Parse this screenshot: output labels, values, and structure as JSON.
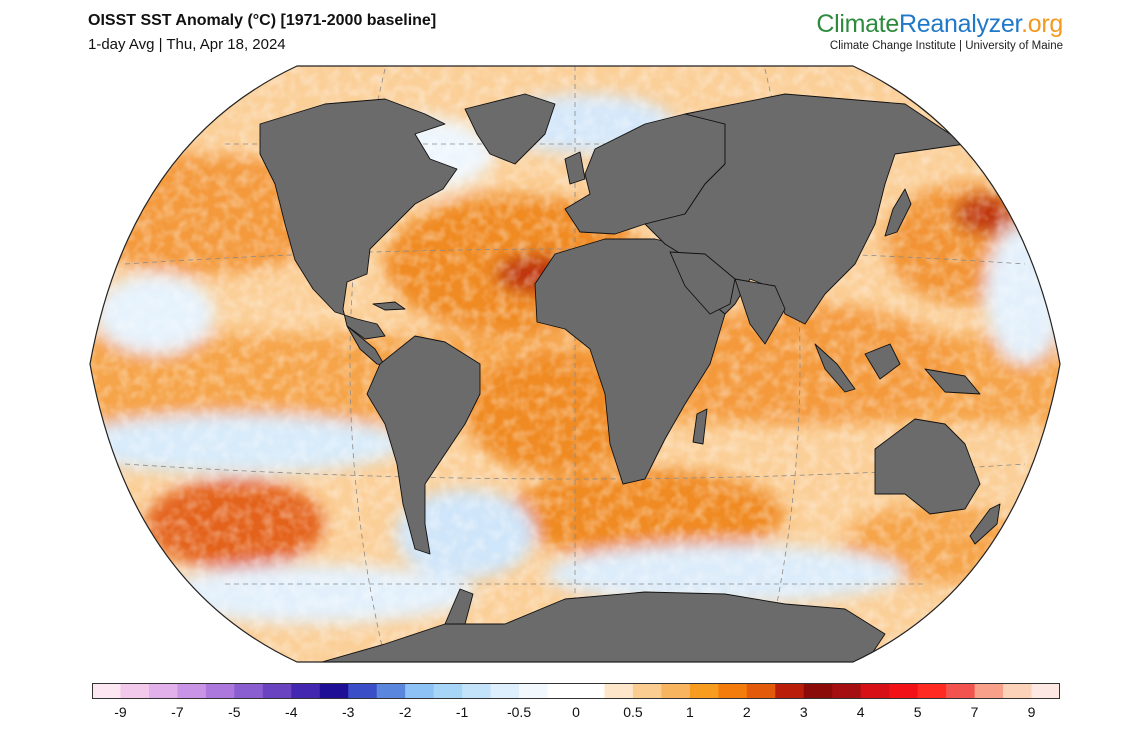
{
  "header": {
    "title": "OISST SST Anomaly (°C) [1971-2000 baseline]",
    "subtitle": "1-day Avg | Thu, Apr 18, 2024"
  },
  "brand": {
    "part1": "Climate",
    "part2": "Reanalyzer",
    "part3": ".org",
    "tagline": "Climate Change Institute | University of Maine",
    "colors": {
      "part1": "#2e8b3e",
      "part2": "#1f78c8",
      "part3": "#f39a1e"
    }
  },
  "map": {
    "projection": "Robinson",
    "land_color": "#6b6b6b",
    "coast_color": "#111111",
    "graticule": "dashed"
  },
  "colorbar": {
    "colors": [
      "#fde7f2",
      "#f2c9ea",
      "#e2b1ec",
      "#c994e6",
      "#ad78de",
      "#8a5dd1",
      "#6a43c0",
      "#4427b0",
      "#1f0f96",
      "#3a4ec7",
      "#5a86de",
      "#8dc2f7",
      "#a7d5f8",
      "#c2e3fa",
      "#ddeffc",
      "#f2f9fe",
      "#ffffff",
      "#ffffff",
      "#fde6c9",
      "#fbcd90",
      "#f8b45e",
      "#f79c1f",
      "#f37c0d",
      "#e45a0b",
      "#ba1e0a",
      "#8a0b07",
      "#a60f12",
      "#d70f16",
      "#f11116",
      "#ff2a22",
      "#f2534e",
      "#f9a08a",
      "#fcd2b8",
      "#fde8e4"
    ],
    "ticks": [
      "-9",
      "-7",
      "-5",
      "-4",
      "-3",
      "-2",
      "-1",
      "-0.5",
      "0",
      "0.5",
      "1",
      "2",
      "3",
      "4",
      "5",
      "7",
      "9"
    ]
  }
}
